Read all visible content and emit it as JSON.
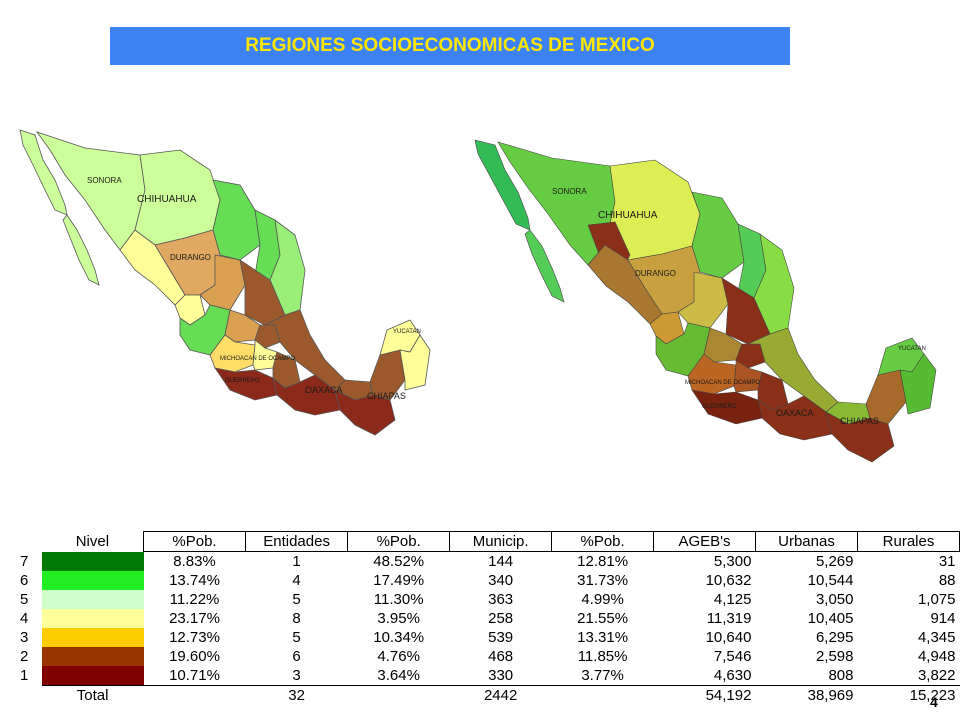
{
  "title": "REGIONES SOCIOECONOMICAS DE MEXICO",
  "page_number": "4",
  "map_left_labels": {
    "sonora": "SONORA",
    "chihuahua": "CHIHUAHUA",
    "durango": "DURANGO",
    "oaxaca": "OAXACA",
    "chiapas": "CHIAPAS",
    "guerrero": "GUERRERO",
    "michoacan": "MICHOACAN DE OCAMPO",
    "yucatan": "YUCATAN"
  },
  "map_right_labels": {
    "sonora": "SONORA",
    "chihuahua": "CHIHUAHUA",
    "durango": "DURANGO",
    "oaxaca": "OAXACA",
    "chiapas": "CHIAPAS",
    "guerrero": "GUERRERO",
    "michoacan": "MICHOACAN DE OCAMPO",
    "yucatan": "YUCATAN"
  },
  "level_colors": {
    "7": "#007a00",
    "6": "#22ee22",
    "5": "#ccffcc",
    "4": "#ffff99",
    "3": "#ffcc00",
    "2": "#993300",
    "1": "#800000"
  },
  "table": {
    "headers": [
      "Nivel",
      "%Pob.",
      "Entidades",
      "%Pob.",
      "Municip.",
      "%Pob.",
      "AGEB's",
      "Urbanas",
      "Rurales"
    ],
    "rows": [
      {
        "nivel": "7",
        "pob1": "8.83%",
        "entidades": "1",
        "pob2": "48.52%",
        "municip": "144",
        "pob3": "12.81%",
        "agebs": "5,300",
        "urbanas": "5,269",
        "rurales": "31"
      },
      {
        "nivel": "6",
        "pob1": "13.74%",
        "entidades": "4",
        "pob2": "17.49%",
        "municip": "340",
        "pob3": "31.73%",
        "agebs": "10,632",
        "urbanas": "10,544",
        "rurales": "88"
      },
      {
        "nivel": "5",
        "pob1": "11.22%",
        "entidades": "5",
        "pob2": "11.30%",
        "municip": "363",
        "pob3": "4.99%",
        "agebs": "4,125",
        "urbanas": "3,050",
        "rurales": "1,075"
      },
      {
        "nivel": "4",
        "pob1": "23.17%",
        "entidades": "8",
        "pob2": "3.95%",
        "municip": "258",
        "pob3": "21.55%",
        "agebs": "11,319",
        "urbanas": "10,405",
        "rurales": "914"
      },
      {
        "nivel": "3",
        "pob1": "12.73%",
        "entidades": "5",
        "pob2": "10.34%",
        "municip": "539",
        "pob3": "13.31%",
        "agebs": "10,640",
        "urbanas": "6,295",
        "rurales": "4,345"
      },
      {
        "nivel": "2",
        "pob1": "19.60%",
        "entidades": "6",
        "pob2": "4.76%",
        "municip": "468",
        "pob3": "11.85%",
        "agebs": "7,546",
        "urbanas": "2,598",
        "rurales": "4,948"
      },
      {
        "nivel": "1",
        "pob1": "10.71%",
        "entidades": "3",
        "pob2": "3.64%",
        "municip": "330",
        "pob3": "3.77%",
        "agebs": "4,630",
        "urbanas": "808",
        "rurales": "3,822"
      }
    ],
    "total": {
      "label": "Total",
      "entidades": "32",
      "municip": "2442",
      "agebs": "54,192",
      "urbanas": "38,969",
      "rurales": "15,223"
    }
  }
}
